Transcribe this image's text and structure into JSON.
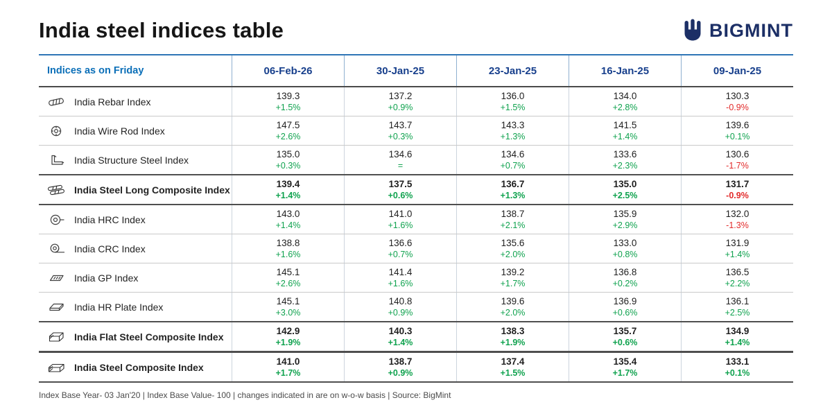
{
  "header": {
    "title": "India steel indices table",
    "brand": "BIGMINT"
  },
  "chart_data": {
    "type": "table",
    "title": "India steel indices table",
    "columns": [
      "Indices as on Friday",
      "06-Feb-26",
      "30-Jan-25",
      "23-Jan-25",
      "16-Jan-25",
      "09-Jan-25"
    ],
    "rows": [
      {
        "name": "India Rebar Index",
        "icon": "rebar-icon",
        "bold": false,
        "values": [
          "139.3",
          "137.2",
          "136.0",
          "134.0",
          "130.3"
        ],
        "changes": [
          "+1.5%",
          "+0.9%",
          "+1.5%",
          "+2.8%",
          "-0.9%"
        ]
      },
      {
        "name": "India Wire Rod Index",
        "icon": "wire-rod-icon",
        "bold": false,
        "values": [
          "147.5",
          "143.7",
          "143.3",
          "141.5",
          "139.6"
        ],
        "changes": [
          "+2.6%",
          "+0.3%",
          "+1.3%",
          "+1.4%",
          "+0.1%"
        ]
      },
      {
        "name": "India Structure Steel Index",
        "icon": "structure-steel-icon",
        "bold": false,
        "values": [
          "135.0",
          "134.6",
          "134.6",
          "133.6",
          "130.6"
        ],
        "changes": [
          "+0.3%",
          "=",
          "+0.7%",
          "+2.3%",
          "-1.7%"
        ]
      },
      {
        "name": "India Steel Long Composite Index",
        "icon": "long-steel-icon",
        "bold": true,
        "values": [
          "139.4",
          "137.5",
          "136.7",
          "135.0",
          "131.7"
        ],
        "changes": [
          "+1.4%",
          "+0.6%",
          "+1.3%",
          "+2.5%",
          "-0.9%"
        ]
      },
      {
        "name": "India HRC Index",
        "icon": "hrc-coil-icon",
        "bold": false,
        "values": [
          "143.0",
          "141.0",
          "138.7",
          "135.9",
          "132.0"
        ],
        "changes": [
          "+1.4%",
          "+1.6%",
          "+2.1%",
          "+2.9%",
          "-1.3%"
        ]
      },
      {
        "name": "India CRC Index",
        "icon": "crc-coil-icon",
        "bold": false,
        "values": [
          "138.8",
          "136.6",
          "135.6",
          "133.0",
          "131.9"
        ],
        "changes": [
          "+1.6%",
          "+0.7%",
          "+2.0%",
          "+0.8%",
          "+1.4%"
        ]
      },
      {
        "name": "India GP Index",
        "icon": "gp-sheet-icon",
        "bold": false,
        "values": [
          "145.1",
          "141.4",
          "139.2",
          "136.8",
          "136.5"
        ],
        "changes": [
          "+2.6%",
          "+1.6%",
          "+1.7%",
          "+0.2%",
          "+2.2%"
        ]
      },
      {
        "name": "India HR Plate Index",
        "icon": "hr-plate-icon",
        "bold": false,
        "values": [
          "145.1",
          "140.8",
          "139.6",
          "136.9",
          "136.1"
        ],
        "changes": [
          "+3.0%",
          "+0.9%",
          "+2.0%",
          "+0.6%",
          "+2.5%"
        ]
      },
      {
        "name": "India Flat Steel Composite Index",
        "icon": "flat-steel-icon",
        "bold": true,
        "values": [
          "142.9",
          "140.3",
          "138.3",
          "135.7",
          "134.9"
        ],
        "changes": [
          "+1.9%",
          "+1.4%",
          "+1.9%",
          "+0.6%",
          "+1.4%"
        ]
      },
      {
        "name": "India Steel Composite Index",
        "icon": "steel-composite-icon",
        "bold": true,
        "values": [
          "141.0",
          "138.7",
          "137.4",
          "135.4",
          "133.1"
        ],
        "changes": [
          "+1.7%",
          "+0.9%",
          "+1.5%",
          "+1.7%",
          "+0.1%"
        ]
      }
    ]
  },
  "footer": {
    "note": "Index Base Year- 03 Jan'20 | Index Base Value- 100 | changes indicated in are on w-o-w basis | Source: BigMint"
  },
  "colors": {
    "positive_green": "#0fa24e",
    "negative_red": "#e22a2a",
    "date_header_navy": "#173f8c",
    "first_header_blue": "#0b6fb8",
    "accent_line_blue": "#2e75b6",
    "brand_navy": "#1c2f66"
  }
}
